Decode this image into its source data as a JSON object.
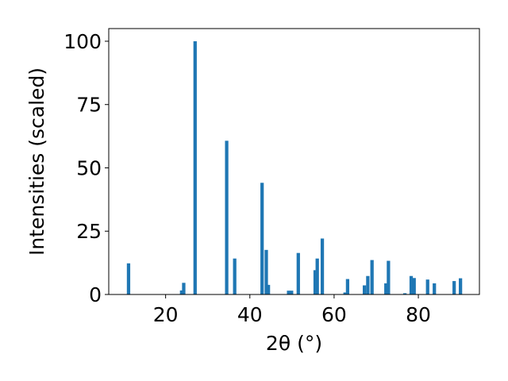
{
  "chart_data": {
    "type": "bar",
    "xlabel": "2θ (°)",
    "ylabel": "Intensities (scaled)",
    "xlim": [
      6.5,
      94.5
    ],
    "ylim": [
      0,
      105
    ],
    "xticks": [
      20,
      40,
      60,
      80
    ],
    "yticks": [
      0,
      25,
      50,
      75,
      100
    ],
    "grid": false,
    "bar_color": "#1f77b4",
    "bar_width": 0.8,
    "points": [
      {
        "x": 11.2,
        "y": 12.3
      },
      {
        "x": 23.8,
        "y": 1.6
      },
      {
        "x": 24.3,
        "y": 4.6
      },
      {
        "x": 27.0,
        "y": 100.0
      },
      {
        "x": 34.5,
        "y": 60.7
      },
      {
        "x": 36.4,
        "y": 14.2
      },
      {
        "x": 42.9,
        "y": 44.1
      },
      {
        "x": 43.9,
        "y": 17.6
      },
      {
        "x": 44.4,
        "y": 3.8
      },
      {
        "x": 49.2,
        "y": 1.5
      },
      {
        "x": 49.9,
        "y": 1.5
      },
      {
        "x": 51.5,
        "y": 16.4
      },
      {
        "x": 55.5,
        "y": 9.6
      },
      {
        "x": 56.0,
        "y": 14.2
      },
      {
        "x": 57.2,
        "y": 22.1
      },
      {
        "x": 62.6,
        "y": 0.8
      },
      {
        "x": 63.2,
        "y": 6.1
      },
      {
        "x": 67.2,
        "y": 3.6
      },
      {
        "x": 68.0,
        "y": 7.3
      },
      {
        "x": 69.0,
        "y": 13.6
      },
      {
        "x": 72.3,
        "y": 4.4
      },
      {
        "x": 72.9,
        "y": 13.3
      },
      {
        "x": 76.8,
        "y": 0.5
      },
      {
        "x": 78.3,
        "y": 7.3
      },
      {
        "x": 79.0,
        "y": 6.5
      },
      {
        "x": 82.2,
        "y": 5.9
      },
      {
        "x": 83.8,
        "y": 4.4
      },
      {
        "x": 88.5,
        "y": 5.3
      },
      {
        "x": 90.0,
        "y": 6.4
      }
    ]
  }
}
